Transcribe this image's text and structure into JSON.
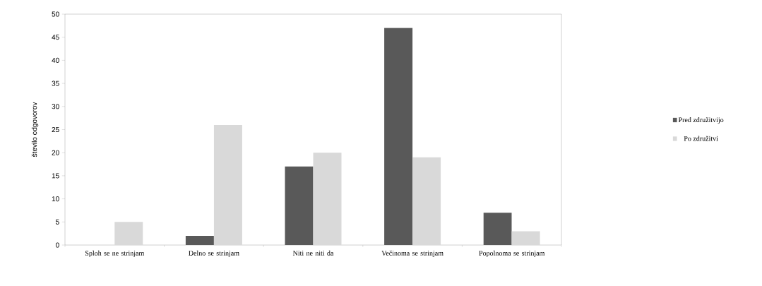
{
  "chart_data": {
    "type": "bar",
    "ylabel": "število odgovorov",
    "categories": [
      "Sploh se ne strinjam",
      "Delno se strinjam",
      "Niti ne niti da",
      "Večinoma se strinjam",
      "Popolnoma se strinjam"
    ],
    "series": [
      {
        "name": "Pred združitvijo",
        "color": "#595959",
        "values": [
          0,
          2,
          17,
          47,
          7
        ]
      },
      {
        "name": "Po združitvi",
        "color": "#d9d9d9",
        "values": [
          5,
          26,
          20,
          19,
          3
        ]
      }
    ],
    "ylim": [
      0,
      50
    ],
    "yticks": [
      0,
      5,
      10,
      15,
      20,
      25,
      30,
      35,
      40,
      45,
      50
    ],
    "grid": false,
    "legend": "right"
  }
}
